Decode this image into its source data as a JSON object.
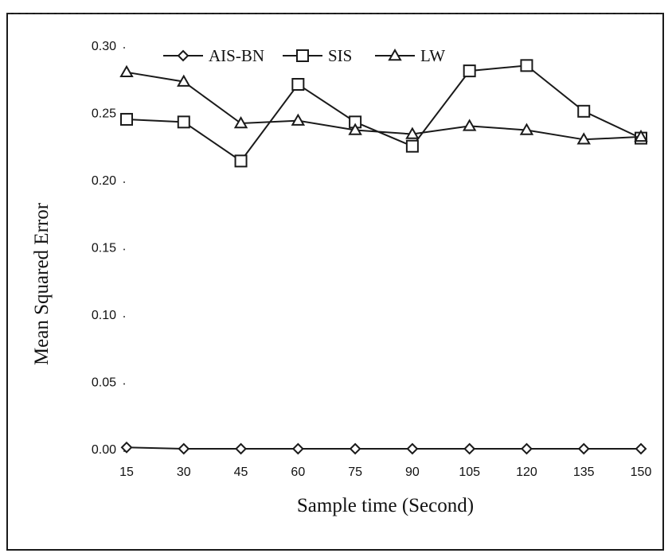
{
  "chart_data": {
    "type": "line",
    "title": "",
    "xlabel": "Sample time (Second)",
    "ylabel": "Mean Squared Error",
    "x": [
      15,
      30,
      45,
      60,
      75,
      90,
      105,
      120,
      135,
      150
    ],
    "x_tick_labels": [
      "15",
      "30",
      "45",
      "60",
      "75",
      "90",
      "105",
      "120",
      "135",
      "150"
    ],
    "y_tick_values": [
      0.0,
      0.05,
      0.1,
      0.15,
      0.2,
      0.25,
      0.3
    ],
    "y_tick_labels": [
      "0.00",
      "0.05",
      "0.10",
      "0.15",
      "0.20",
      "0.25",
      "0.30"
    ],
    "ylim": [
      0,
      0.3
    ],
    "grid": false,
    "legend_position": "top",
    "series": [
      {
        "name": "AIS-BN",
        "marker": "diamond",
        "values": [
          0.001,
          0.0,
          0.0,
          0.0,
          0.0,
          0.0,
          0.0,
          0.0,
          0.0,
          0.0
        ]
      },
      {
        "name": "SIS",
        "marker": "square",
        "values": [
          0.245,
          0.243,
          0.214,
          0.271,
          0.243,
          0.225,
          0.281,
          0.285,
          0.251,
          0.231
        ]
      },
      {
        "name": "LW",
        "marker": "triangle",
        "values": [
          0.28,
          0.273,
          0.242,
          0.244,
          0.237,
          0.234,
          0.24,
          0.237,
          0.23,
          0.232
        ]
      }
    ],
    "colors": {
      "line": "#1a1a1a",
      "marker_fill": "#ffffff"
    }
  }
}
